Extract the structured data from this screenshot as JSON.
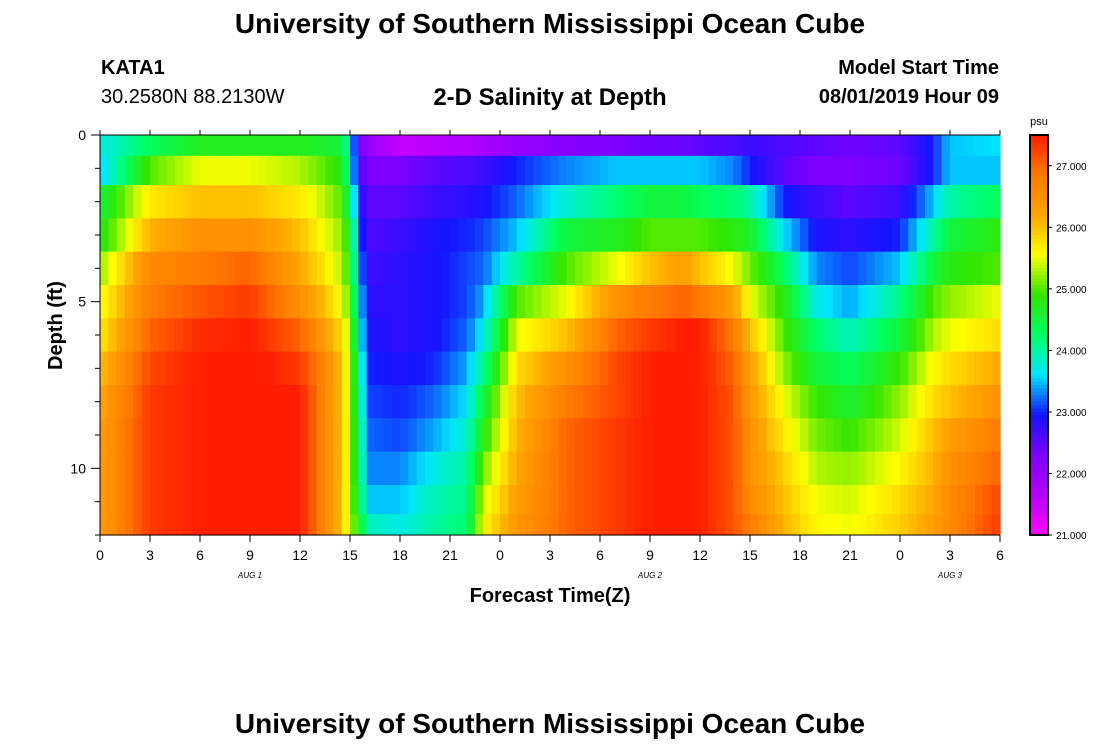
{
  "header": {
    "title": "University of Southern Mississippi Ocean Cube",
    "station_id": "KATA1",
    "coordinates": "30.2580N 88.2130W",
    "plot_title": "2-D Salinity at Depth",
    "model_start_label": "Model Start Time",
    "model_start_value": "08/01/2019 Hour 09"
  },
  "footer": {
    "title": "University of Southern Mississippi Ocean Cube"
  },
  "chart_data": {
    "type": "heatmap",
    "title": "2-D Salinity at Depth",
    "xlabel": "Forecast Time(Z)",
    "ylabel": "Depth (ft)",
    "x_tick_labels": [
      "0",
      "3",
      "6",
      "9",
      "12",
      "15",
      "18",
      "21",
      "0",
      "3",
      "6",
      "9",
      "12",
      "15",
      "18",
      "21",
      "0",
      "3",
      "6"
    ],
    "day_labels": [
      "AUG 1",
      "AUG 2",
      "AUG 3"
    ],
    "xlim": [
      0,
      54
    ],
    "ylim": [
      12,
      0
    ],
    "y_ticks": [
      0,
      5,
      10
    ],
    "grid": false,
    "colorbar": {
      "unit": "psu",
      "min": 21.0,
      "max": 27.5,
      "ticks": [
        "21.000",
        "22.000",
        "23.000",
        "24.000",
        "25.000",
        "26.000",
        "27.000"
      ],
      "colors": [
        "#ff00ff",
        "#b400ff",
        "#7d00ff",
        "#1414ff",
        "#00e6ff",
        "#00ff64",
        "#32e600",
        "#ffff00",
        "#ffa500",
        "#ff7800",
        "#ff1e00"
      ]
    },
    "depth_bins": [
      0.25,
      1.0,
      2.0,
      3.0,
      4.0,
      5.0,
      6.0,
      7.0,
      8.0,
      9.0,
      10.0,
      11.0,
      11.75
    ],
    "time_knots_hours": [
      0,
      3,
      6,
      9,
      12,
      13.5,
      14.5,
      15,
      15.5,
      16,
      18,
      20,
      22,
      23,
      25,
      28,
      31,
      33,
      35,
      36,
      38,
      39,
      41,
      43,
      45,
      48,
      50,
      51,
      54
    ],
    "salinity_profiles": [
      [
        23.7,
        23.5,
        24.5,
        24.7,
        25.2,
        25.5,
        25.7,
        26.0,
        26.2,
        26.3,
        26.3,
        26.3,
        26.3
      ],
      [
        24.3,
        25.0,
        25.7,
        26.1,
        26.6,
        26.8,
        27.0,
        27.2,
        27.3,
        27.3,
        27.3,
        27.3,
        27.3
      ],
      [
        24.7,
        25.5,
        26.0,
        26.5,
        26.8,
        27.1,
        27.4,
        27.5,
        27.5,
        27.5,
        27.5,
        27.5,
        27.5
      ],
      [
        24.7,
        25.5,
        26.0,
        26.5,
        27.0,
        27.3,
        27.5,
        27.6,
        27.6,
        27.6,
        27.6,
        27.6,
        27.6
      ],
      [
        24.7,
        25.3,
        25.7,
        26.0,
        26.2,
        26.5,
        27.0,
        27.3,
        27.5,
        27.5,
        27.5,
        27.5,
        27.5
      ],
      [
        24.6,
        25.0,
        25.3,
        25.5,
        25.7,
        26.0,
        26.3,
        26.6,
        26.6,
        26.6,
        26.6,
        26.6,
        26.6
      ],
      [
        24.5,
        24.8,
        25.0,
        25.2,
        25.3,
        25.5,
        25.8,
        26.0,
        26.0,
        26.0,
        26.0,
        26.0,
        26.0
      ],
      [
        23.8,
        23.8,
        24.3,
        24.7,
        24.8,
        25.0,
        25.2,
        25.3,
        25.3,
        25.3,
        25.3,
        25.3,
        25.3
      ],
      [
        22.5,
        22.7,
        23.0,
        23.3,
        23.5,
        23.8,
        24.0,
        24.3,
        24.4,
        24.5,
        24.5,
        24.6,
        24.8
      ],
      [
        22.0,
        22.3,
        22.5,
        22.6,
        22.7,
        22.8,
        22.9,
        23.0,
        23.1,
        23.2,
        23.3,
        23.5,
        23.9
      ],
      [
        21.5,
        22.3,
        22.5,
        22.7,
        22.8,
        22.8,
        22.8,
        22.9,
        23.0,
        23.1,
        23.3,
        23.5,
        23.7
      ],
      [
        21.6,
        22.5,
        22.7,
        22.9,
        22.9,
        22.9,
        22.9,
        23.0,
        23.2,
        23.4,
        23.7,
        23.9,
        24.0
      ],
      [
        21.7,
        22.6,
        22.8,
        23.0,
        23.1,
        23.1,
        23.2,
        23.4,
        23.6,
        23.8,
        24.0,
        24.1,
        24.2
      ],
      [
        21.8,
        22.7,
        22.9,
        23.1,
        23.2,
        23.4,
        23.7,
        24.1,
        24.5,
        24.8,
        25.1,
        25.4,
        25.6
      ],
      [
        22.0,
        23.0,
        23.2,
        23.5,
        24.0,
        25.0,
        25.5,
        25.8,
        26.0,
        26.1,
        26.2,
        26.3,
        26.4
      ],
      [
        22.2,
        23.3,
        23.8,
        24.5,
        25.0,
        25.5,
        26.0,
        26.5,
        26.8,
        27.0,
        27.0,
        27.0,
        27.0
      ],
      [
        22.3,
        23.5,
        24.2,
        24.7,
        25.5,
        26.5,
        27.0,
        27.2,
        27.2,
        27.3,
        27.3,
        27.3,
        27.3
      ],
      [
        22.4,
        23.5,
        24.5,
        25.0,
        26.0,
        26.8,
        27.3,
        27.5,
        27.5,
        27.5,
        27.5,
        27.5,
        27.5
      ],
      [
        22.4,
        23.5,
        24.5,
        25.0,
        26.3,
        27.0,
        27.5,
        27.6,
        27.6,
        27.6,
        27.6,
        27.6,
        27.6
      ],
      [
        22.5,
        23.5,
        24.3,
        25.0,
        26.0,
        26.8,
        27.5,
        27.5,
        27.5,
        27.5,
        27.5,
        27.5,
        27.5
      ],
      [
        22.6,
        23.3,
        24.2,
        24.8,
        25.5,
        26.3,
        26.8,
        27.0,
        27.1,
        27.1,
        27.1,
        27.1,
        27.1
      ],
      [
        22.7,
        23.0,
        24.0,
        24.6,
        25.1,
        25.5,
        26.0,
        26.3,
        26.4,
        26.5,
        26.5,
        26.6,
        26.8
      ],
      [
        22.6,
        22.5,
        23.0,
        23.6,
        24.3,
        24.8,
        25.0,
        25.2,
        25.5,
        25.7,
        25.9,
        26.0,
        26.1
      ],
      [
        22.5,
        22.3,
        22.7,
        22.9,
        23.3,
        23.7,
        24.2,
        24.5,
        24.9,
        25.1,
        25.3,
        25.5,
        25.6
      ],
      [
        22.4,
        22.3,
        22.5,
        22.8,
        23.1,
        23.4,
        23.9,
        24.3,
        24.6,
        24.9,
        25.2,
        25.4,
        25.5
      ],
      [
        22.5,
        22.4,
        22.7,
        23.0,
        23.5,
        24.1,
        24.5,
        24.9,
        25.2,
        25.4,
        25.6,
        25.8,
        25.9
      ],
      [
        23.0,
        23.0,
        23.5,
        24.0,
        24.5,
        25.0,
        25.3,
        25.6,
        25.8,
        26.0,
        26.1,
        26.2,
        26.3
      ],
      [
        23.5,
        23.5,
        24.0,
        24.5,
        24.8,
        25.2,
        25.5,
        25.8,
        26.0,
        26.3,
        26.5,
        26.6,
        26.6
      ],
      [
        23.6,
        23.5,
        24.3,
        24.8,
        25.0,
        25.5,
        25.8,
        26.2,
        26.5,
        26.8,
        27.0,
        27.2,
        27.3
      ]
    ]
  }
}
